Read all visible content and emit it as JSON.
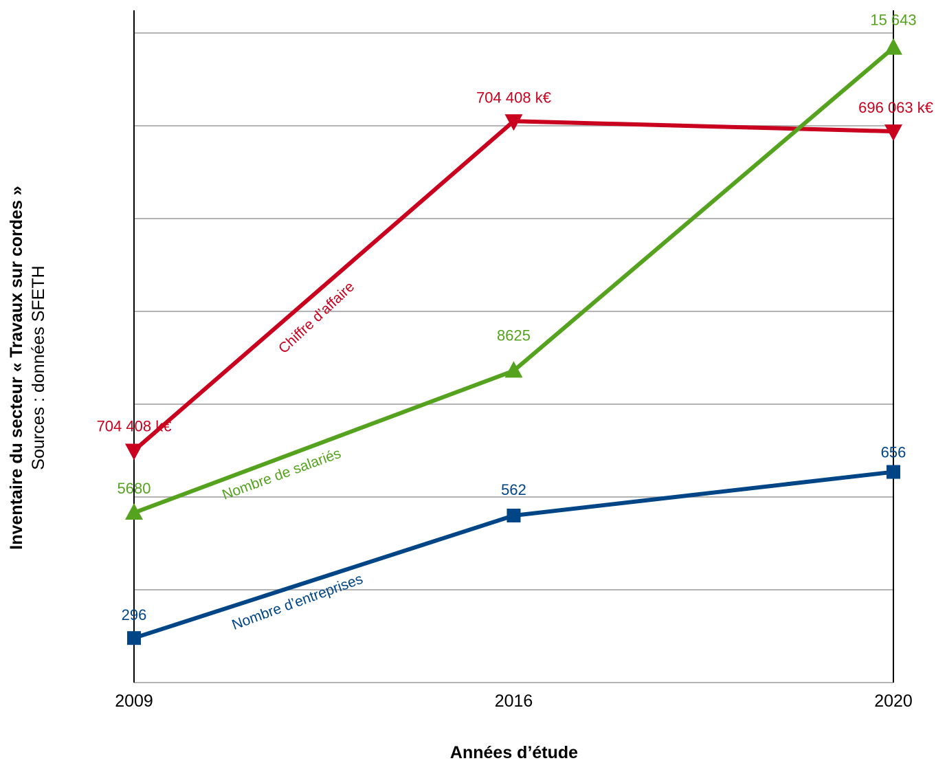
{
  "chart_data": {
    "type": "line",
    "categories": [
      "2009",
      "2016",
      "2020"
    ],
    "xlabel": "Années d’étude",
    "ylabel": "Inventaire du secteur « Travaux sur cordes »",
    "ylabel_sub": "Sources : données SFETH",
    "grid": true,
    "series": [
      {
        "name": "Chiffre d’affaire",
        "color": "#c9001e",
        "marker": "triangle-down",
        "plot_level": [
          2.5,
          6.05,
          5.94
        ],
        "labels": [
          "704 408 k€",
          "704 408 k€",
          "696 063 k€"
        ]
      },
      {
        "name": "Nombre de salariés",
        "color": "#54a21e",
        "marker": "triangle-up",
        "plot_level": [
          1.83,
          3.36,
          6.84
        ],
        "labels": [
          "5680",
          "8625",
          "15 643"
        ]
      },
      {
        "name": "Nombre d’entreprises",
        "color": "#004586",
        "marker": "square",
        "plot_level": [
          0.48,
          1.8,
          2.27
        ],
        "labels": [
          "296",
          "562",
          "656"
        ]
      }
    ]
  }
}
